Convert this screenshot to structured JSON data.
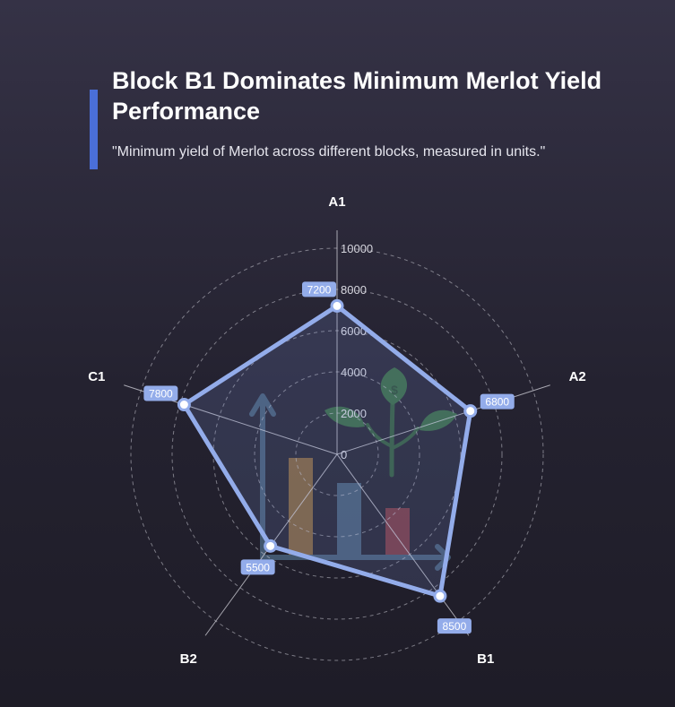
{
  "header": {
    "title": "Block B1 Dominates Minimum Merlot Yield Performance",
    "subtitle": "\"Minimum yield of Merlot across different blocks, measured in units.\""
  },
  "colors": {
    "accent": "#4a6fd8",
    "series_stroke": "#93acea",
    "label_box": "#93acea",
    "grid": "#c8c8d2"
  },
  "chart_data": {
    "type": "radar",
    "title": "Block B1 Dominates Minimum Merlot Yield Performance",
    "subtitle": "\"Minimum yield of Merlot across different blocks, measured in units.\"",
    "categories": [
      "A1",
      "A2",
      "B1",
      "B2",
      "C1"
    ],
    "series": [
      {
        "values": [
          7200,
          6800,
          8500,
          5500,
          7800
        ]
      }
    ],
    "rlim": [
      0,
      10000
    ],
    "ticks": [
      0,
      2000,
      4000,
      6000,
      8000,
      10000
    ],
    "tick_labels": [
      "0",
      "2000",
      "4000",
      "6000",
      "8000",
      "10000"
    ],
    "grid": true,
    "background_icon": "growth-chart-plant-icon"
  }
}
